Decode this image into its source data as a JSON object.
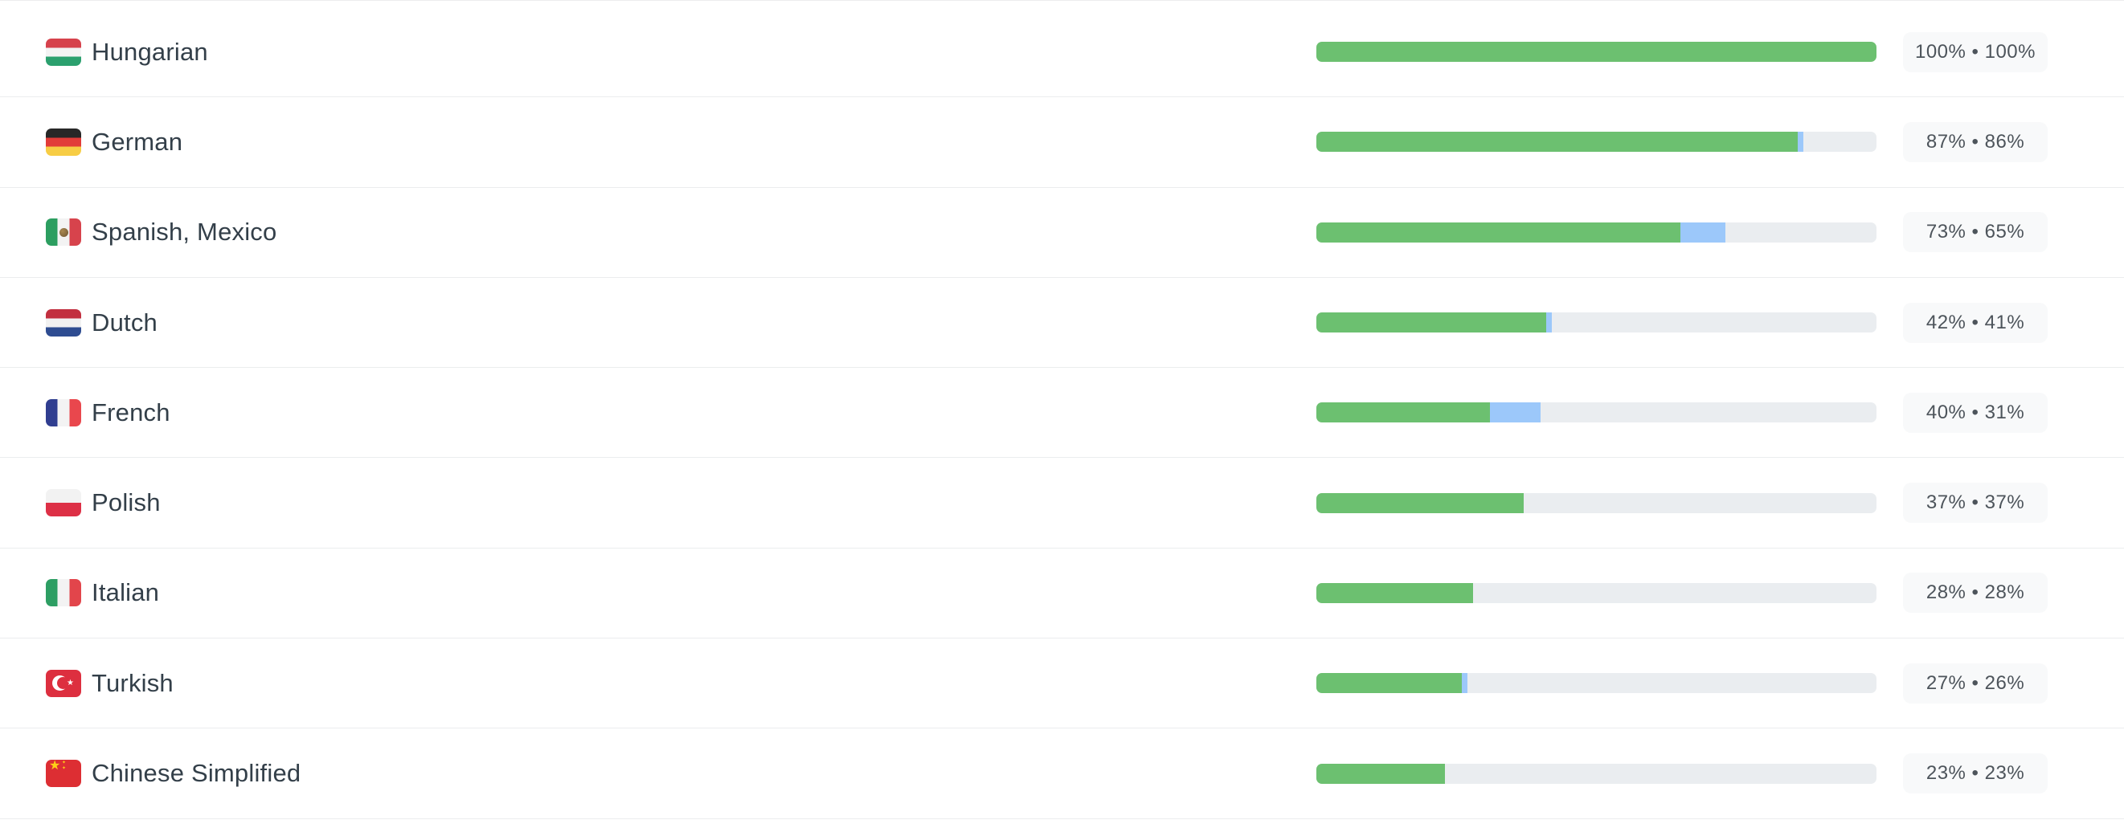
{
  "list_title": "language-translation-status",
  "colors": {
    "bar_translated_green": "#6cc070",
    "bar_pending_blue": "#9cc8fa",
    "bar_track_gray": "#eaedf0",
    "badge_background": "#f8f9fa",
    "language_text": "#333f49",
    "divider": "#ebedee"
  },
  "badge_separator": "•",
  "languages": [
    {
      "name": "Hungarian",
      "flag": "hu",
      "total_pct": 100,
      "translated_pct": 100,
      "badge": "100% • 100%"
    },
    {
      "name": "German",
      "flag": "de",
      "total_pct": 87,
      "translated_pct": 86,
      "badge": "87% • 86%"
    },
    {
      "name": "Spanish, Mexico",
      "flag": "mx",
      "total_pct": 73,
      "translated_pct": 65,
      "badge": "73% • 65%"
    },
    {
      "name": "Dutch",
      "flag": "nl",
      "total_pct": 42,
      "translated_pct": 41,
      "badge": "42% • 41%"
    },
    {
      "name": "French",
      "flag": "fr",
      "total_pct": 40,
      "translated_pct": 31,
      "badge": "40% • 31%"
    },
    {
      "name": "Polish",
      "flag": "pl",
      "total_pct": 37,
      "translated_pct": 37,
      "badge": "37% • 37%"
    },
    {
      "name": "Italian",
      "flag": "it",
      "total_pct": 28,
      "translated_pct": 28,
      "badge": "28% • 28%"
    },
    {
      "name": "Turkish",
      "flag": "tr",
      "total_pct": 27,
      "translated_pct": 26,
      "badge": "27% • 26%"
    },
    {
      "name": "Chinese Simplified",
      "flag": "cn",
      "total_pct": 23,
      "translated_pct": 23,
      "badge": "23% • 23%"
    }
  ]
}
